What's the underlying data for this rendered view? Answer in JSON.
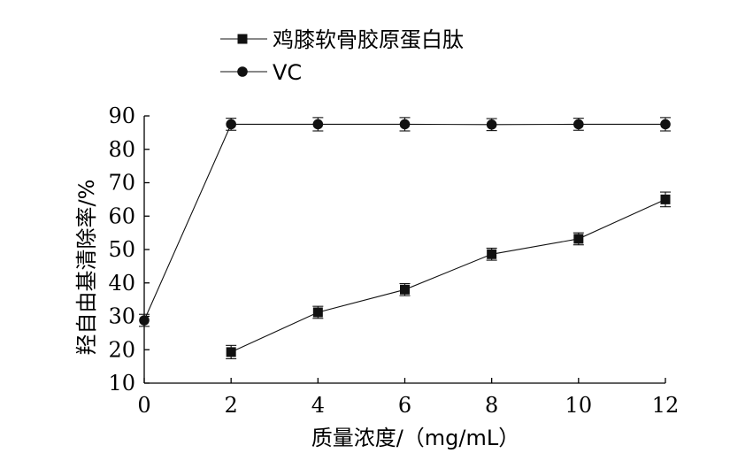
{
  "chart_data": {
    "type": "line",
    "xlabel": "质量浓度/（mg/mL）",
    "ylabel": "羟自由基清除率/%",
    "xlim": [
      0,
      12
    ],
    "ylim": [
      10,
      90
    ],
    "xticks": [
      0,
      2,
      4,
      6,
      8,
      10,
      12
    ],
    "yticks": [
      10,
      20,
      30,
      40,
      50,
      60,
      70,
      80,
      90
    ],
    "legend_position": "top-left",
    "grid": false,
    "series": [
      {
        "name": "鸡膝软骨胶原蛋白肽",
        "marker": "square",
        "x": [
          2,
          4,
          6,
          8,
          10,
          12
        ],
        "values": [
          19.3,
          31.2,
          38.0,
          48.6,
          53.2,
          65.0
        ],
        "error": [
          2.0,
          1.8,
          1.8,
          1.8,
          1.8,
          2.2
        ]
      },
      {
        "name": "VC",
        "marker": "circle",
        "x": [
          0,
          2,
          4,
          6,
          8,
          10,
          12
        ],
        "values": [
          28.8,
          87.5,
          87.5,
          87.5,
          87.4,
          87.5,
          87.5
        ],
        "error": [
          1.8,
          1.8,
          2.0,
          2.0,
          1.8,
          1.8,
          2.0
        ]
      }
    ]
  }
}
